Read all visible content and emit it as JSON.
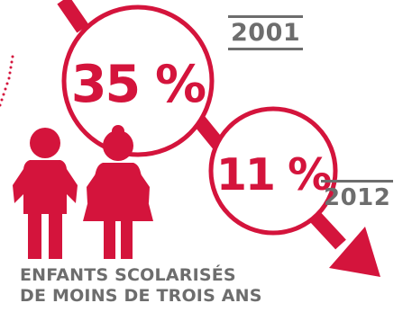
{
  "colors": {
    "accent": "#d4143c",
    "text_gray": "#6d6d6d",
    "dots": "#d4143c",
    "background": "#ffffff"
  },
  "markers": [
    {
      "year": "2001",
      "value": "35 %"
    },
    {
      "year": "2012",
      "value": "11 %"
    }
  ],
  "caption": {
    "line1": "ENFANTS SCOLARISÉS",
    "line2": "DE MOINS DE TROIS ANS"
  },
  "icons": [
    "boy-with-backpack-icon",
    "girl-with-backpack-icon",
    "down-trend-arrow-icon"
  ]
}
